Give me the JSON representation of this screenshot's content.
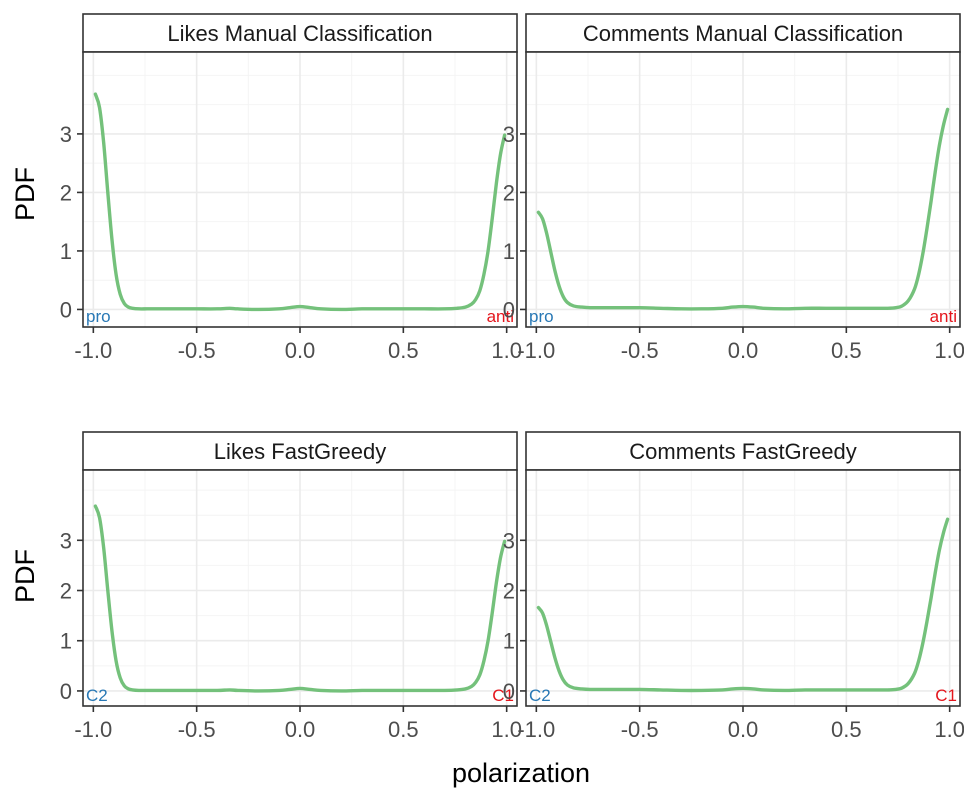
{
  "colors": {
    "line": "#74c17b",
    "left_label": "#2878b5",
    "right_label": "#e4151c",
    "grid_major": "#ebebeb",
    "grid_minor": "#f4f4f4",
    "frame": "#333333",
    "strip_fill": "#ffffff"
  },
  "chart_data": [
    {
      "type": "line",
      "title": "Likes Manual Classification",
      "xlabel": "polarization",
      "ylabel": "PDF",
      "xlim": [
        -1.05,
        1.05
      ],
      "ylim": [
        -0.3,
        4.4
      ],
      "x_ticks": [
        -1.0,
        -0.5,
        0.0,
        0.5,
        1.0
      ],
      "x_tick_labels": [
        "-1.0",
        "-0.5",
        "0.0",
        "0.5",
        "1.0"
      ],
      "y_ticks": [
        0,
        1,
        2,
        3
      ],
      "y_tick_labels": [
        "0",
        "1",
        "2",
        "3"
      ],
      "grid": true,
      "left_label": "pro",
      "right_label": "anti",
      "x": [
        -0.99,
        -0.97,
        -0.95,
        -0.93,
        -0.91,
        -0.89,
        -0.87,
        -0.85,
        -0.83,
        -0.81,
        -0.78,
        -0.74,
        -0.7,
        -0.6,
        -0.5,
        -0.4,
        -0.34,
        -0.3,
        -0.2,
        -0.1,
        -0.05,
        0.0,
        0.05,
        0.1,
        0.2,
        0.3,
        0.4,
        0.5,
        0.6,
        0.7,
        0.76,
        0.8,
        0.83,
        0.85,
        0.87,
        0.89,
        0.91,
        0.93,
        0.95,
        0.97,
        0.99
      ],
      "values": [
        3.68,
        3.45,
        2.85,
        2.0,
        1.2,
        0.6,
        0.26,
        0.1,
        0.04,
        0.02,
        0.01,
        0.01,
        0.01,
        0.01,
        0.01,
        0.01,
        0.02,
        0.01,
        0.0,
        0.01,
        0.03,
        0.05,
        0.03,
        0.01,
        0.0,
        0.01,
        0.01,
        0.01,
        0.01,
        0.01,
        0.02,
        0.04,
        0.09,
        0.17,
        0.32,
        0.6,
        1.0,
        1.55,
        2.15,
        2.65,
        2.98
      ]
    },
    {
      "type": "line",
      "title": "Comments Manual Classification",
      "xlabel": "polarization",
      "ylabel": "",
      "xlim": [
        -1.05,
        1.05
      ],
      "ylim": [
        -0.3,
        4.4
      ],
      "x_ticks": [
        -1.0,
        -0.5,
        0.0,
        0.5,
        1.0
      ],
      "x_tick_labels": [
        "-1.0",
        "-0.5",
        "0.0",
        "0.5",
        "1.0"
      ],
      "y_ticks": [
        0,
        1,
        2,
        3
      ],
      "y_tick_labels": [
        "0",
        "1",
        "2",
        "3"
      ],
      "grid": true,
      "left_label": "pro",
      "right_label": "anti",
      "x": [
        -0.99,
        -0.97,
        -0.95,
        -0.93,
        -0.91,
        -0.89,
        -0.87,
        -0.85,
        -0.82,
        -0.78,
        -0.74,
        -0.7,
        -0.6,
        -0.5,
        -0.4,
        -0.3,
        -0.2,
        -0.1,
        -0.05,
        0.0,
        0.05,
        0.1,
        0.2,
        0.3,
        0.4,
        0.5,
        0.6,
        0.7,
        0.74,
        0.77,
        0.8,
        0.83,
        0.85,
        0.87,
        0.89,
        0.91,
        0.93,
        0.95,
        0.97,
        0.99
      ],
      "values": [
        1.66,
        1.55,
        1.3,
        0.98,
        0.66,
        0.4,
        0.22,
        0.12,
        0.06,
        0.04,
        0.03,
        0.03,
        0.03,
        0.03,
        0.02,
        0.01,
        0.01,
        0.02,
        0.04,
        0.05,
        0.04,
        0.02,
        0.01,
        0.02,
        0.02,
        0.02,
        0.02,
        0.02,
        0.03,
        0.06,
        0.15,
        0.35,
        0.6,
        0.95,
        1.38,
        1.85,
        2.35,
        2.8,
        3.15,
        3.42
      ]
    },
    {
      "type": "line",
      "title": "Likes FastGreedy",
      "xlabel": "polarization",
      "ylabel": "PDF",
      "xlim": [
        -1.05,
        1.05
      ],
      "ylim": [
        -0.3,
        4.4
      ],
      "x_ticks": [
        -1.0,
        -0.5,
        0.0,
        0.5,
        1.0
      ],
      "x_tick_labels": [
        "-1.0",
        "-0.5",
        "0.0",
        "0.5",
        "1.0"
      ],
      "y_ticks": [
        0,
        1,
        2,
        3
      ],
      "y_tick_labels": [
        "0",
        "1",
        "2",
        "3"
      ],
      "grid": true,
      "left_label": "C2",
      "right_label": "C1",
      "x": [
        -0.99,
        -0.97,
        -0.95,
        -0.93,
        -0.91,
        -0.89,
        -0.87,
        -0.85,
        -0.83,
        -0.81,
        -0.78,
        -0.74,
        -0.7,
        -0.6,
        -0.5,
        -0.4,
        -0.34,
        -0.3,
        -0.2,
        -0.1,
        -0.05,
        0.0,
        0.05,
        0.1,
        0.2,
        0.3,
        0.4,
        0.5,
        0.6,
        0.7,
        0.76,
        0.8,
        0.83,
        0.85,
        0.87,
        0.89,
        0.91,
        0.93,
        0.95,
        0.97,
        0.99
      ],
      "values": [
        3.68,
        3.45,
        2.85,
        2.0,
        1.2,
        0.6,
        0.26,
        0.1,
        0.04,
        0.02,
        0.01,
        0.01,
        0.01,
        0.01,
        0.01,
        0.01,
        0.02,
        0.01,
        0.0,
        0.01,
        0.03,
        0.05,
        0.03,
        0.01,
        0.0,
        0.01,
        0.01,
        0.01,
        0.01,
        0.01,
        0.02,
        0.04,
        0.09,
        0.17,
        0.32,
        0.6,
        1.0,
        1.55,
        2.15,
        2.65,
        2.98
      ]
    },
    {
      "type": "line",
      "title": "Comments FastGreedy",
      "xlabel": "polarization",
      "ylabel": "",
      "xlim": [
        -1.05,
        1.05
      ],
      "ylim": [
        -0.3,
        4.4
      ],
      "x_ticks": [
        -1.0,
        -0.5,
        0.0,
        0.5,
        1.0
      ],
      "x_tick_labels": [
        "-1.0",
        "-0.5",
        "0.0",
        "0.5",
        "1.0"
      ],
      "y_ticks": [
        0,
        1,
        2,
        3
      ],
      "y_tick_labels": [
        "0",
        "1",
        "2",
        "3"
      ],
      "grid": true,
      "left_label": "C2",
      "right_label": "C1",
      "x": [
        -0.99,
        -0.97,
        -0.95,
        -0.93,
        -0.91,
        -0.89,
        -0.87,
        -0.85,
        -0.82,
        -0.78,
        -0.74,
        -0.7,
        -0.6,
        -0.5,
        -0.4,
        -0.3,
        -0.2,
        -0.1,
        -0.05,
        0.0,
        0.05,
        0.1,
        0.2,
        0.3,
        0.4,
        0.5,
        0.6,
        0.7,
        0.74,
        0.77,
        0.8,
        0.83,
        0.85,
        0.87,
        0.89,
        0.91,
        0.93,
        0.95,
        0.97,
        0.99
      ],
      "values": [
        1.66,
        1.55,
        1.3,
        0.98,
        0.66,
        0.4,
        0.22,
        0.12,
        0.06,
        0.04,
        0.03,
        0.03,
        0.03,
        0.03,
        0.02,
        0.01,
        0.01,
        0.02,
        0.04,
        0.05,
        0.04,
        0.02,
        0.01,
        0.02,
        0.02,
        0.02,
        0.02,
        0.02,
        0.03,
        0.06,
        0.15,
        0.35,
        0.6,
        0.95,
        1.38,
        1.85,
        2.35,
        2.8,
        3.15,
        3.42
      ]
    }
  ],
  "figure": {
    "xlabel": "polarization",
    "ylabel_top": "PDF",
    "ylabel_bottom": "PDF"
  }
}
